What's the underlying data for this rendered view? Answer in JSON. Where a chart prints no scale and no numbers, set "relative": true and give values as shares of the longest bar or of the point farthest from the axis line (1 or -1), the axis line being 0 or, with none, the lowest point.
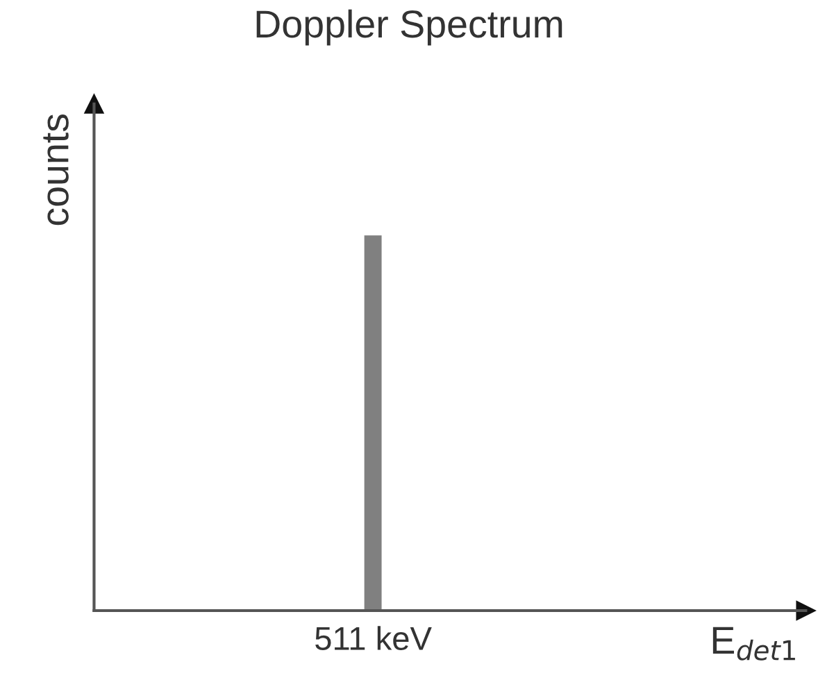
{
  "chart_data": {
    "type": "bar",
    "title": "Doppler Spectrum",
    "annotations": [
      "counts",
      "E$_{det1}$"
    ],
    "relative": true,
    "categories": [
      "511 keV"
    ],
    "values": [
      1
    ],
    "color": "#808080",
    "grid": false,
    "legend": false
  }
}
